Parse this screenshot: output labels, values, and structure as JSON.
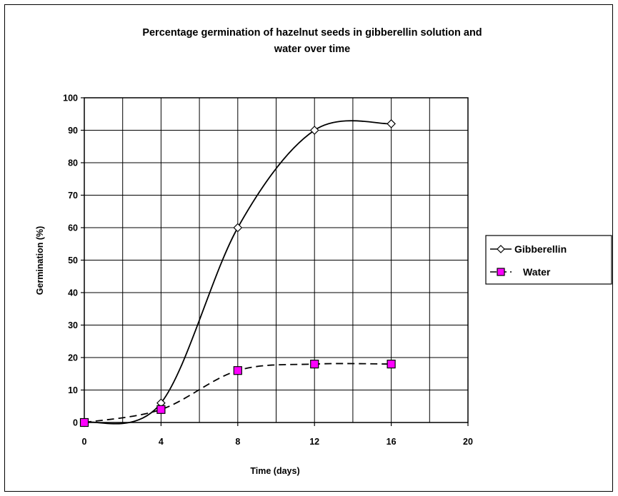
{
  "chart_data": {
    "type": "line",
    "title_lines": [
      "Percentage germination of hazelnut seeds in gibberellin solution and",
      "water over time"
    ],
    "xlabel": "Time (days)",
    "ylabel": "Germination (%)",
    "xlim": [
      0,
      20
    ],
    "ylim": [
      0,
      100
    ],
    "x_ticks": [
      "0",
      "4",
      "8",
      "12",
      "16",
      "20"
    ],
    "y_ticks": [
      "0",
      "10",
      "20",
      "30",
      "40",
      "50",
      "60",
      "70",
      "80",
      "90",
      "100"
    ],
    "grid": true,
    "smoothed": true,
    "legend_position": "right",
    "series": [
      {
        "name": "Gibberellin",
        "x": [
          0,
          4,
          8,
          12,
          16
        ],
        "values": [
          0,
          6,
          60,
          90,
          92
        ],
        "marker": "diamond",
        "line": "solid",
        "color": "#000000",
        "marker_fill": "#ffffff"
      },
      {
        "name": "Water",
        "x": [
          0,
          4,
          8,
          12,
          16
        ],
        "values": [
          0,
          4,
          16,
          18,
          18
        ],
        "marker": "square",
        "line": "dashed",
        "color": "#000000",
        "marker_fill": "#ff00ff"
      }
    ]
  }
}
